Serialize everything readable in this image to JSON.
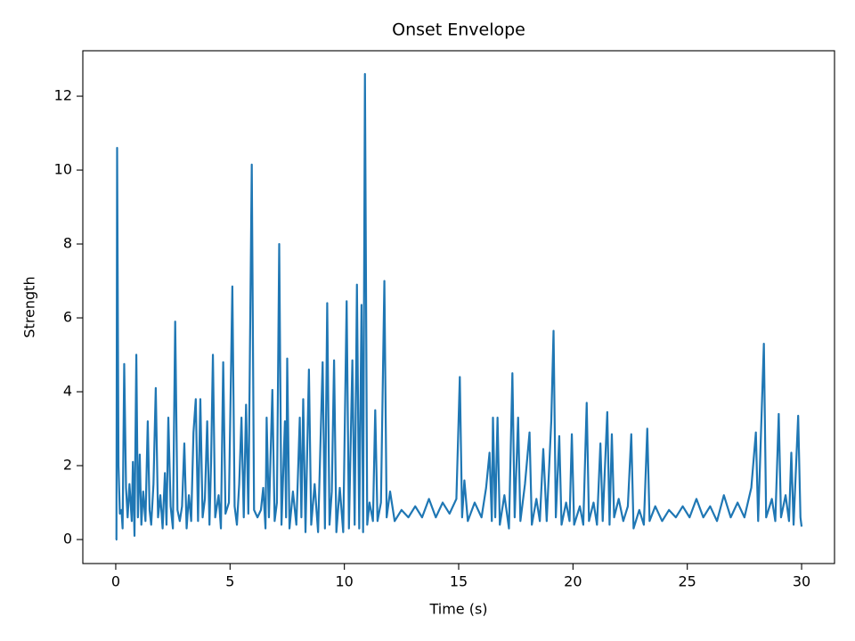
{
  "chart_data": {
    "type": "line",
    "title": "Onset Envelope",
    "x_label": "Time (s)",
    "y_label": "Strength",
    "color": "#1f77b4",
    "x": [
      0,
      0.03,
      0.06,
      0.12,
      0.18,
      0.25,
      0.3,
      0.37,
      0.45,
      0.52,
      0.6,
      0.7,
      0.75,
      0.82,
      0.9,
      0.97,
      1.05,
      1.12,
      1.2,
      1.3,
      1.4,
      1.48,
      1.55,
      1.65,
      1.75,
      1.85,
      1.95,
      2.05,
      2.15,
      2.22,
      2.3,
      2.4,
      2.5,
      2.6,
      2.7,
      2.8,
      2.9,
      3.0,
      3.1,
      3.2,
      3.3,
      3.4,
      3.5,
      3.6,
      3.7,
      3.8,
      3.9,
      4.0,
      4.1,
      4.17,
      4.25,
      4.35,
      4.5,
      4.6,
      4.7,
      4.8,
      4.95,
      5.1,
      5.2,
      5.3,
      5.4,
      5.5,
      5.6,
      5.7,
      5.8,
      5.95,
      6.05,
      6.2,
      6.35,
      6.45,
      6.55,
      6.6,
      6.7,
      6.85,
      6.95,
      7.05,
      7.15,
      7.25,
      7.4,
      7.45,
      7.5,
      7.6,
      7.75,
      7.9,
      8.05,
      8.12,
      8.2,
      8.3,
      8.45,
      8.55,
      8.7,
      8.85,
      9.05,
      9.15,
      9.25,
      9.35,
      9.45,
      9.55,
      9.65,
      9.8,
      9.95,
      10.1,
      10.2,
      10.35,
      10.45,
      10.55,
      10.65,
      10.75,
      10.82,
      10.9,
      11.0,
      11.1,
      11.25,
      11.35,
      11.45,
      11.6,
      11.75,
      11.85,
      12.0,
      12.2,
      12.5,
      12.8,
      13.1,
      13.4,
      13.7,
      14.0,
      14.3,
      14.6,
      14.9,
      15.05,
      15.15,
      15.25,
      15.4,
      15.7,
      16.0,
      16.2,
      16.35,
      16.45,
      16.5,
      16.6,
      16.7,
      16.8,
      17.0,
      17.2,
      17.35,
      17.45,
      17.6,
      17.7,
      17.9,
      18.1,
      18.2,
      18.4,
      18.55,
      18.7,
      18.85,
      19.05,
      19.15,
      19.25,
      19.4,
      19.5,
      19.7,
      19.85,
      19.95,
      20.05,
      20.3,
      20.45,
      20.6,
      20.7,
      20.9,
      21.05,
      21.2,
      21.3,
      21.5,
      21.6,
      21.7,
      21.8,
      22.0,
      22.2,
      22.4,
      22.55,
      22.65,
      22.9,
      23.1,
      23.25,
      23.35,
      23.6,
      23.9,
      24.2,
      24.5,
      24.8,
      25.1,
      25.4,
      25.7,
      26.0,
      26.3,
      26.6,
      26.9,
      27.2,
      27.5,
      27.8,
      28.0,
      28.1,
      28.35,
      28.45,
      28.7,
      28.85,
      29.0,
      29.1,
      29.3,
      29.45,
      29.55,
      29.65,
      29.85,
      29.95,
      30.0
    ],
    "values": [
      0,
      0,
      10.6,
      2.0,
      0.7,
      0.8,
      0.3,
      4.75,
      1.4,
      0.6,
      1.5,
      0.5,
      2.1,
      0.1,
      5.0,
      0.6,
      2.3,
      0.4,
      1.3,
      0.5,
      3.2,
      0.8,
      0.4,
      1.5,
      4.1,
      0.6,
      1.2,
      0.3,
      1.8,
      0.4,
      3.3,
      0.9,
      0.3,
      5.9,
      0.8,
      0.5,
      0.9,
      2.6,
      0.3,
      1.2,
      0.5,
      2.9,
      3.8,
      0.5,
      3.8,
      0.6,
      1.1,
      3.2,
      0.4,
      2.1,
      5.0,
      0.6,
      1.2,
      0.3,
      4.8,
      0.7,
      1.0,
      6.85,
      0.9,
      0.4,
      1.5,
      3.3,
      0.6,
      3.65,
      0.7,
      10.15,
      0.8,
      0.6,
      0.8,
      1.4,
      0.3,
      3.3,
      0.6,
      4.05,
      0.5,
      1.0,
      8.0,
      0.4,
      3.2,
      0.6,
      4.9,
      0.3,
      1.3,
      0.4,
      3.3,
      0.6,
      3.8,
      0.2,
      4.6,
      0.4,
      1.5,
      0.2,
      4.8,
      0.3,
      6.4,
      0.4,
      1.3,
      4.85,
      0.2,
      1.4,
      0.2,
      6.45,
      0.3,
      4.85,
      0.4,
      6.9,
      0.3,
      6.35,
      0.2,
      12.6,
      0.4,
      1.0,
      0.5,
      3.5,
      0.5,
      1.0,
      7.0,
      0.6,
      1.3,
      0.5,
      0.8,
      0.6,
      0.9,
      0.6,
      1.1,
      0.6,
      1.0,
      0.7,
      1.1,
      4.4,
      0.6,
      1.6,
      0.5,
      1.0,
      0.6,
      1.4,
      2.35,
      0.5,
      3.3,
      0.6,
      3.3,
      0.4,
      1.2,
      0.3,
      4.5,
      0.6,
      3.3,
      0.5,
      1.5,
      2.9,
      0.4,
      1.1,
      0.5,
      2.45,
      0.5,
      3.2,
      5.65,
      0.6,
      2.8,
      0.4,
      1.0,
      0.5,
      2.85,
      0.4,
      0.9,
      0.4,
      3.7,
      0.5,
      1.0,
      0.4,
      2.6,
      0.5,
      3.45,
      0.4,
      2.85,
      0.6,
      1.1,
      0.5,
      0.9,
      2.85,
      0.3,
      0.8,
      0.4,
      3.0,
      0.5,
      0.9,
      0.5,
      0.8,
      0.6,
      0.9,
      0.6,
      1.1,
      0.6,
      0.9,
      0.5,
      1.2,
      0.6,
      1.0,
      0.6,
      1.4,
      2.9,
      0.5,
      5.3,
      0.6,
      1.1,
      0.5,
      3.4,
      0.6,
      1.2,
      0.5,
      2.35,
      0.4,
      3.35,
      0.6,
      0.35
    ],
    "xlim": [
      -1.44,
      31.44
    ],
    "ylim": [
      -0.65,
      13.23
    ],
    "xticks": [
      0,
      5,
      10,
      15,
      20,
      25,
      30
    ],
    "yticks": [
      0,
      2,
      4,
      6,
      8,
      10,
      12
    ]
  }
}
